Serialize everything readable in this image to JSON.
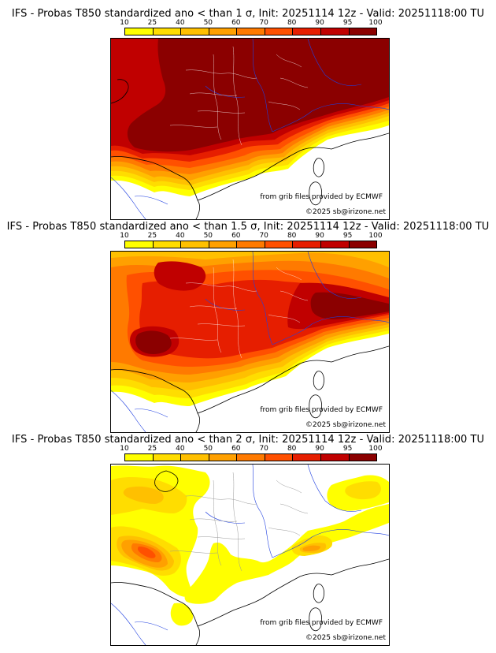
{
  "legend": {
    "ticks": [
      "10",
      "25",
      "40",
      "50",
      "60",
      "70",
      "80",
      "90",
      "95",
      "100"
    ],
    "colors": [
      "#ffff00",
      "#ffdd00",
      "#ffc000",
      "#ffa000",
      "#ff7a00",
      "#ff5000",
      "#e61e00",
      "#c00000",
      "#8b0000"
    ]
  },
  "credits": {
    "source": "from grib files provided by ECMWF",
    "copyright": "©2025 sb@irizone.net"
  },
  "panels": [
    {
      "title": "IFS - Probas T850  standardized ano < than 1 σ, Init: 20251114 12z - Valid: 20251118:00 TU"
    },
    {
      "title": "IFS - Probas T850  standardized ano < than 1.5 σ, Init: 20251114 12z - Valid: 20251118:00 TU"
    },
    {
      "title": "IFS - Probas T850  standardized ano < than 2 σ, Init: 20251114 12z - Valid: 20251118:00 TU"
    }
  ]
}
